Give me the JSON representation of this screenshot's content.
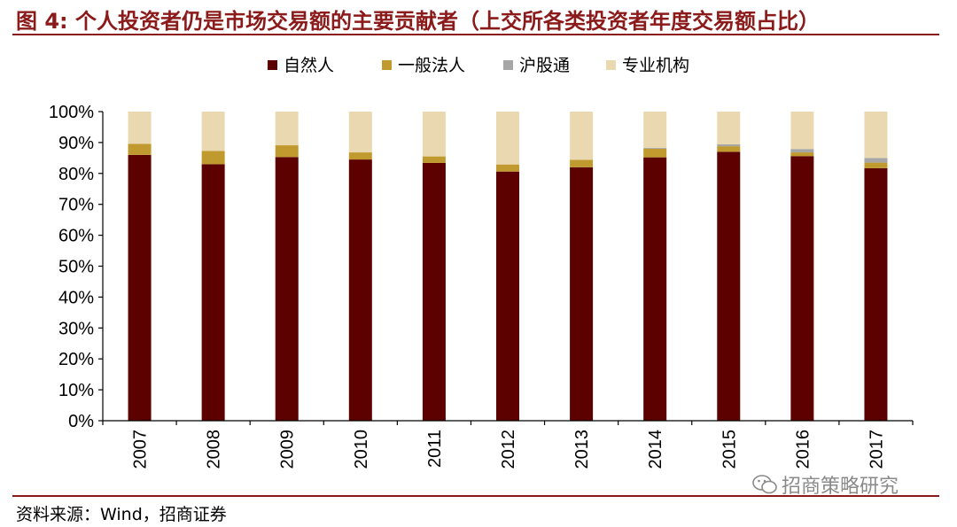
{
  "figure": {
    "title": "图 4:  个人投资者仍是市场交易额的主要贡献者（上交所各类投资者年度交易额占比）",
    "source": "资料来源：Wind，招商证券",
    "watermark": "招商策略研究"
  },
  "colors": {
    "title": "#8b1a1a",
    "natural": "#5c0000",
    "general_corp": "#c09a2e",
    "hugutong": "#a6a6a6",
    "institution": "#ead9b0"
  },
  "chart_data": {
    "type": "bar",
    "stacked": true,
    "categories": [
      "2007",
      "2008",
      "2009",
      "2010",
      "2011",
      "2012",
      "2013",
      "2014",
      "2015",
      "2016",
      "2017"
    ],
    "series": [
      {
        "name": "自然人",
        "color": "#5c0000",
        "values": [
          86.0,
          83.0,
          85.3,
          84.5,
          83.4,
          80.6,
          82.0,
          85.2,
          87.0,
          85.6,
          81.7
        ]
      },
      {
        "name": "一般法人",
        "color": "#c09a2e",
        "values": [
          3.6,
          4.3,
          3.8,
          2.3,
          2.1,
          2.3,
          2.4,
          2.8,
          1.8,
          1.2,
          1.8
        ]
      },
      {
        "name": "沪股通",
        "color": "#a6a6a6",
        "values": [
          0,
          0,
          0,
          0,
          0,
          0,
          0,
          0.3,
          0.6,
          1.1,
          1.5
        ]
      },
      {
        "name": "专业机构",
        "color": "#ead9b0",
        "values": [
          10.4,
          12.7,
          10.9,
          13.2,
          14.5,
          17.1,
          15.6,
          11.7,
          10.6,
          12.1,
          15.0
        ]
      }
    ],
    "y_ticks": [
      "0%",
      "10%",
      "20%",
      "30%",
      "40%",
      "50%",
      "60%",
      "70%",
      "80%",
      "90%",
      "100%"
    ],
    "ylim": [
      0,
      100
    ],
    "xlabel": "",
    "ylabel": "",
    "legend_position": "top-center",
    "grid": false
  }
}
